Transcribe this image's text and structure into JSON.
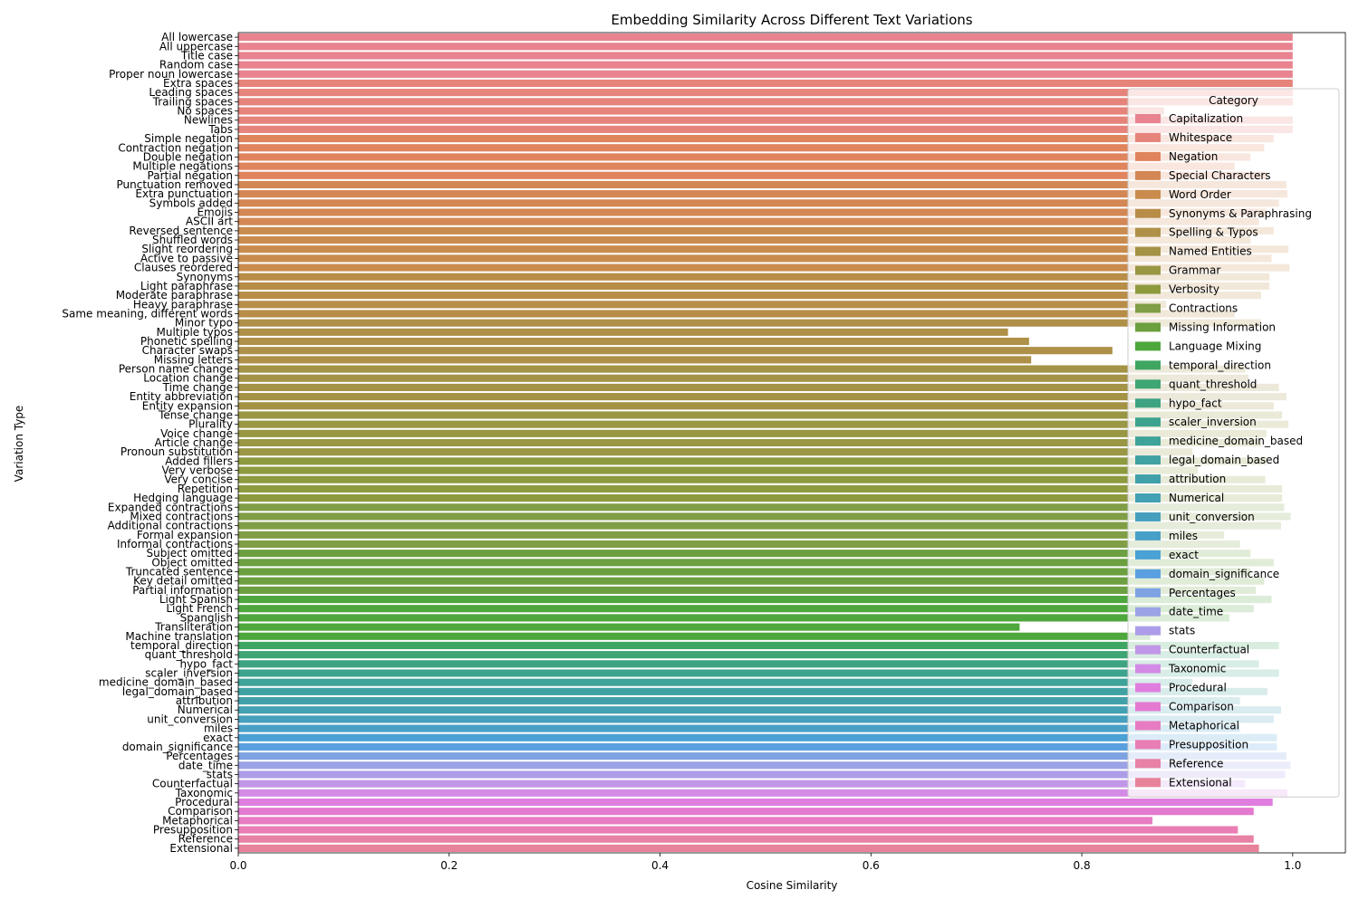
{
  "chart_data": {
    "type": "bar",
    "orientation": "horizontal",
    "title": "Embedding Similarity Across Different Text Variations",
    "xlabel": "Cosine Similarity",
    "ylabel": "Variation Type",
    "xlim": [
      0,
      1.05
    ],
    "xticks": [
      "0.0",
      "0.2",
      "0.4",
      "0.6",
      "0.8",
      "1.0"
    ],
    "grid": false,
    "legend": {
      "title": "Category",
      "placement": "right"
    },
    "categories": [
      {
        "name": "Capitalization",
        "color": "#e8838f"
      },
      {
        "name": "Whitespace",
        "color": "#e6837a"
      },
      {
        "name": "Negation",
        "color": "#e0845e"
      },
      {
        "name": "Special Characters",
        "color": "#d38754"
      },
      {
        "name": "Word Order",
        "color": "#c98c4e"
      },
      {
        "name": "Synonyms & Paraphrasing",
        "color": "#b88d48"
      },
      {
        "name": "Spelling & Typos",
        "color": "#ae9048"
      },
      {
        "name": "Named Entities",
        "color": "#a49245"
      },
      {
        "name": "Grammar",
        "color": "#999644"
      },
      {
        "name": "Verbosity",
        "color": "#8e9a3e"
      },
      {
        "name": "Contractions",
        "color": "#7f9e45"
      },
      {
        "name": "Missing Information",
        "color": "#6b9f3f"
      },
      {
        "name": "Language Mixing",
        "color": "#4ea73d"
      },
      {
        "name": "temporal_direction",
        "color": "#3ea661"
      },
      {
        "name": "quant_threshold",
        "color": "#3fa574"
      },
      {
        "name": "hypo_fact",
        "color": "#3ea382"
      },
      {
        "name": "scaler_inversion",
        "color": "#3da38e"
      },
      {
        "name": "medicine_domain_based",
        "color": "#3ea398"
      },
      {
        "name": "legal_domain_based",
        "color": "#40a2a2"
      },
      {
        "name": "attribution",
        "color": "#42a0aa"
      },
      {
        "name": "Numerical",
        "color": "#44a0b3"
      },
      {
        "name": "unit_conversion",
        "color": "#46a0bd"
      },
      {
        "name": "miles",
        "color": "#48a0c8"
      },
      {
        "name": "exact",
        "color": "#4aa1d4"
      },
      {
        "name": "domain_significance",
        "color": "#5aa0e0"
      },
      {
        "name": "Percentages",
        "color": "#7ea2e2"
      },
      {
        "name": "date_time",
        "color": "#9ba3e6"
      },
      {
        "name": "stats",
        "color": "#ad9de8"
      },
      {
        "name": "Counterfactual",
        "color": "#c196e8"
      },
      {
        "name": "Taxonomic",
        "color": "#d48be6"
      },
      {
        "name": "Procedural",
        "color": "#e07ee0"
      },
      {
        "name": "Comparison",
        "color": "#e479d0"
      },
      {
        "name": "Metaphorical",
        "color": "#e77cc3"
      },
      {
        "name": "Presupposition",
        "color": "#e97eb5"
      },
      {
        "name": "Reference",
        "color": "#e881a6"
      },
      {
        "name": "Extensional",
        "color": "#e8829a"
      }
    ],
    "bars": [
      {
        "label": "All lowercase",
        "value": 1.0,
        "category": 0
      },
      {
        "label": "All uppercase",
        "value": 1.0,
        "category": 0
      },
      {
        "label": "Title case",
        "value": 1.0,
        "category": 0
      },
      {
        "label": "Random case",
        "value": 1.0,
        "category": 0
      },
      {
        "label": "Proper noun lowercase",
        "value": 1.0,
        "category": 0
      },
      {
        "label": "Extra spaces",
        "value": 1.0,
        "category": 1
      },
      {
        "label": "Leading spaces",
        "value": 1.0,
        "category": 1
      },
      {
        "label": "Trailing spaces",
        "value": 1.0,
        "category": 1
      },
      {
        "label": "No spaces",
        "value": 0.878,
        "category": 1
      },
      {
        "label": "Newlines",
        "value": 1.0,
        "category": 1
      },
      {
        "label": "Tabs",
        "value": 1.0,
        "category": 1
      },
      {
        "label": "Simple negation",
        "value": 0.982,
        "category": 2
      },
      {
        "label": "Contraction negation",
        "value": 0.973,
        "category": 2
      },
      {
        "label": "Double negation",
        "value": 0.96,
        "category": 2
      },
      {
        "label": "Multiple negations",
        "value": 0.945,
        "category": 2
      },
      {
        "label": "Partial negation",
        "value": 0.975,
        "category": 2
      },
      {
        "label": "Punctuation removed",
        "value": 0.994,
        "category": 3
      },
      {
        "label": "Extra punctuation",
        "value": 0.995,
        "category": 3
      },
      {
        "label": "Symbols added",
        "value": 0.987,
        "category": 3
      },
      {
        "label": "Emojis",
        "value": 0.975,
        "category": 3
      },
      {
        "label": "ASCII art",
        "value": 0.968,
        "category": 3
      },
      {
        "label": "Reversed sentence",
        "value": 0.982,
        "category": 4
      },
      {
        "label": "Shuffled words",
        "value": 0.96,
        "category": 4
      },
      {
        "label": "Slight reordering",
        "value": 0.996,
        "category": 4
      },
      {
        "label": "Active to passive",
        "value": 0.98,
        "category": 4
      },
      {
        "label": "Clauses reordered",
        "value": 0.997,
        "category": 4
      },
      {
        "label": "Synonyms",
        "value": 0.978,
        "category": 5
      },
      {
        "label": "Light paraphrase",
        "value": 0.978,
        "category": 5
      },
      {
        "label": "Moderate paraphrase",
        "value": 0.97,
        "category": 5
      },
      {
        "label": "Heavy paraphrase",
        "value": 0.88,
        "category": 5
      },
      {
        "label": "Same meaning, different words",
        "value": 0.945,
        "category": 5
      },
      {
        "label": "Minor typo",
        "value": 0.97,
        "category": 6
      },
      {
        "label": "Multiple typos",
        "value": 0.73,
        "category": 6
      },
      {
        "label": "Phonetic spelling",
        "value": 0.75,
        "category": 6
      },
      {
        "label": "Character swaps",
        "value": 0.829,
        "category": 6
      },
      {
        "label": "Missing letters",
        "value": 0.752,
        "category": 6
      },
      {
        "label": "Person name change",
        "value": 0.955,
        "category": 7
      },
      {
        "label": "Location change",
        "value": 0.958,
        "category": 7
      },
      {
        "label": "Time change",
        "value": 0.987,
        "category": 7
      },
      {
        "label": "Entity abbreviation",
        "value": 0.994,
        "category": 7
      },
      {
        "label": "Entity expansion",
        "value": 0.982,
        "category": 7
      },
      {
        "label": "Tense change",
        "value": 0.99,
        "category": 8
      },
      {
        "label": "Plurality",
        "value": 0.996,
        "category": 8
      },
      {
        "label": "Voice change",
        "value": 0.975,
        "category": 8
      },
      {
        "label": "Article change",
        "value": 0.97,
        "category": 8
      },
      {
        "label": "Pronoun substitution",
        "value": 0.905,
        "category": 8
      },
      {
        "label": "Added fillers",
        "value": 0.975,
        "category": 9
      },
      {
        "label": "Very verbose",
        "value": 0.91,
        "category": 9
      },
      {
        "label": "Very concise",
        "value": 0.974,
        "category": 9
      },
      {
        "label": "Repetition",
        "value": 0.99,
        "category": 9
      },
      {
        "label": "Hedging language",
        "value": 0.99,
        "category": 9
      },
      {
        "label": "Expanded contractions",
        "value": 0.992,
        "category": 10
      },
      {
        "label": "Mixed contractions",
        "value": 0.998,
        "category": 10
      },
      {
        "label": "Additional contractions",
        "value": 0.989,
        "category": 10
      },
      {
        "label": "Formal expansion",
        "value": 0.935,
        "category": 10
      },
      {
        "label": "Informal contractions",
        "value": 0.95,
        "category": 10
      },
      {
        "label": "Subject omitted",
        "value": 0.96,
        "category": 11
      },
      {
        "label": "Object omitted",
        "value": 0.982,
        "category": 11
      },
      {
        "label": "Truncated sentence",
        "value": 0.96,
        "category": 11
      },
      {
        "label": "Key detail omitted",
        "value": 0.973,
        "category": 11
      },
      {
        "label": "Partial information",
        "value": 0.965,
        "category": 11
      },
      {
        "label": "Light Spanish",
        "value": 0.98,
        "category": 12
      },
      {
        "label": "Light French",
        "value": 0.963,
        "category": 12
      },
      {
        "label": "Spanglish",
        "value": 0.94,
        "category": 12
      },
      {
        "label": "Transliteration",
        "value": 0.741,
        "category": 12
      },
      {
        "label": "Machine translation",
        "value": 0.865,
        "category": 12
      },
      {
        "label": "temporal_direction",
        "value": 0.987,
        "category": 13
      },
      {
        "label": "quant_threshold",
        "value": 0.95,
        "category": 14
      },
      {
        "label": "hypo_fact",
        "value": 0.968,
        "category": 15
      },
      {
        "label": "scaler_inversion",
        "value": 0.987,
        "category": 16
      },
      {
        "label": "medicine_domain_based",
        "value": 0.905,
        "category": 17
      },
      {
        "label": "legal_domain_based",
        "value": 0.976,
        "category": 18
      },
      {
        "label": "attribution",
        "value": 0.95,
        "category": 19
      },
      {
        "label": "Numerical",
        "value": 0.989,
        "category": 20
      },
      {
        "label": "unit_conversion",
        "value": 0.982,
        "category": 21
      },
      {
        "label": "miles",
        "value": 0.95,
        "category": 22
      },
      {
        "label": "exact",
        "value": 0.985,
        "category": 23
      },
      {
        "label": "domain_significance",
        "value": 0.985,
        "category": 24
      },
      {
        "label": "Percentages",
        "value": 0.994,
        "category": 25
      },
      {
        "label": "date_time",
        "value": 0.998,
        "category": 26
      },
      {
        "label": "stats",
        "value": 0.993,
        "category": 27
      },
      {
        "label": "Counterfactual",
        "value": 0.955,
        "category": 28
      },
      {
        "label": "Taxonomic",
        "value": 0.995,
        "category": 29
      },
      {
        "label": "Procedural",
        "value": 0.981,
        "category": 30
      },
      {
        "label": "Comparison",
        "value": 0.963,
        "category": 31
      },
      {
        "label": "Metaphorical",
        "value": 0.867,
        "category": 32
      },
      {
        "label": "Presupposition",
        "value": 0.948,
        "category": 33
      },
      {
        "label": "Reference",
        "value": 0.963,
        "category": 34
      },
      {
        "label": "Extensional",
        "value": 0.968,
        "category": 35
      }
    ]
  }
}
